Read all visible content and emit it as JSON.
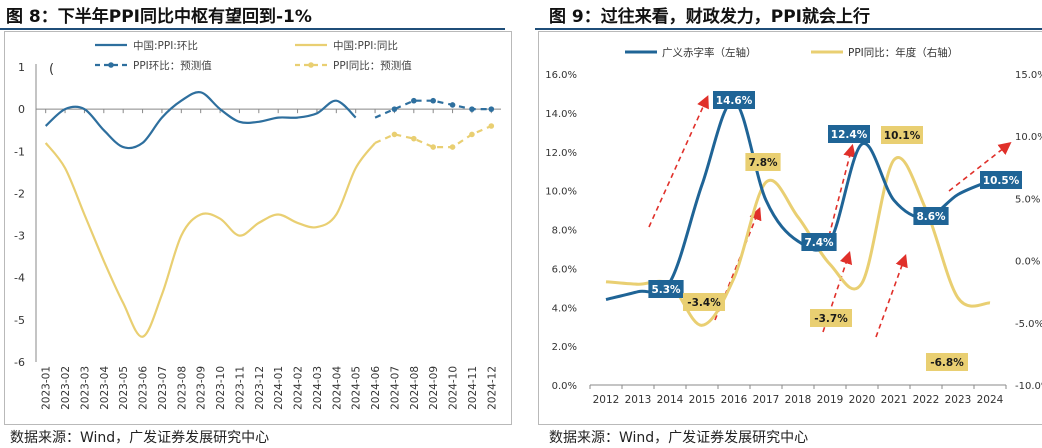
{
  "chart_data": [
    {
      "type": "line",
      "title": "图 8：下半年PPI同比中枢有望回到-1%",
      "source": "数据来源：Wind，广发证券发展研究中心",
      "ylim": [
        -6,
        1
      ],
      "yticks": [
        "1",
        "0",
        "-1",
        "-2",
        "-3",
        "-4",
        "-5",
        "-6"
      ],
      "categories": [
        "2023-01",
        "2023-02",
        "2023-03",
        "2023-04",
        "2023-05",
        "2023-06",
        "2023-07",
        "2023-08",
        "2023-09",
        "2023-10",
        "2023-11",
        "2023-12",
        "2024-01",
        "2024-02",
        "2024-03",
        "2024-04",
        "2024-05",
        "2024-06",
        "2024-07",
        "2024-08",
        "2024-09",
        "2024-10",
        "2024-11",
        "2024-12"
      ],
      "legend_stray": "(",
      "series": [
        {
          "name": "中国:PPI:环比",
          "color": "#2e6f9e",
          "style": "solid",
          "values": [
            -0.4,
            0.0,
            0.0,
            -0.5,
            -0.9,
            -0.8,
            -0.2,
            0.2,
            0.4,
            0.0,
            -0.3,
            -0.3,
            -0.2,
            -0.2,
            -0.1,
            0.2,
            -0.2,
            null,
            null,
            null,
            null,
            null,
            null,
            null
          ]
        },
        {
          "name": "中国:PPI:同比",
          "color": "#e9cf72",
          "style": "solid",
          "values": [
            -0.8,
            -1.4,
            -2.5,
            -3.6,
            -4.6,
            -5.4,
            -4.4,
            -3.0,
            -2.5,
            -2.6,
            -3.0,
            -2.7,
            -2.5,
            -2.7,
            -2.8,
            -2.5,
            -1.4,
            -0.8,
            null,
            null,
            null,
            null,
            null,
            null
          ]
        },
        {
          "name": "PPI环比：预测值",
          "color": "#2e6f9e",
          "style": "dashed",
          "values": [
            null,
            null,
            null,
            null,
            null,
            null,
            null,
            null,
            null,
            null,
            null,
            null,
            null,
            null,
            null,
            null,
            null,
            -0.2,
            0.0,
            0.2,
            0.2,
            0.1,
            0.0,
            0.0
          ]
        },
        {
          "name": "PPI同比：预测值",
          "color": "#e9cf72",
          "style": "dashed",
          "values": [
            null,
            null,
            null,
            null,
            null,
            null,
            null,
            null,
            null,
            null,
            null,
            null,
            null,
            null,
            null,
            null,
            null,
            -0.8,
            -0.6,
            -0.7,
            -0.9,
            -0.9,
            -0.6,
            -0.4
          ]
        }
      ]
    },
    {
      "type": "line",
      "title": "图 9：过往来看，财政发力，PPI就会上行",
      "source": "数据来源：Wind，广发证券发展研究中心",
      "x": [
        "2012",
        "2013",
        "2014",
        "2015",
        "2016",
        "2017",
        "2018",
        "2019",
        "2020",
        "2021",
        "2022",
        "2023",
        "2024"
      ],
      "ylim_left": [
        0,
        16
      ],
      "ylim_right": [
        -10,
        15
      ],
      "yticks_left": [
        "16.0%",
        "14.0%",
        "12.0%",
        "10.0%",
        "8.0%",
        "6.0%",
        "4.0%",
        "2.0%",
        "0.0%"
      ],
      "yticks_right": [
        "15.0%",
        "10.0%",
        "5.0%",
        "0.0%",
        "-5.0%",
        "-10.0%"
      ],
      "series": [
        {
          "name": "广义赤字率（左轴）",
          "axis": "left",
          "color": "#1f6496",
          "values": [
            4.4,
            4.8,
            5.3,
            10.3,
            14.6,
            9.5,
            7.4,
            7.4,
            12.4,
            9.5,
            8.6,
            9.8,
            10.5
          ]
        },
        {
          "name": "PPI同比：年度（右轴）",
          "axis": "right",
          "color": "#e9cf72",
          "values": [
            -1.7,
            -1.9,
            -1.9,
            -5.2,
            -1.4,
            6.3,
            3.5,
            -0.3,
            -1.8,
            8.1,
            4.1,
            -3.0,
            -3.4
          ]
        }
      ],
      "labels": [
        {
          "text": "14.6%",
          "series": "left"
        },
        {
          "text": "5.3%",
          "series": "left"
        },
        {
          "text": "7.4%",
          "series": "left"
        },
        {
          "text": "12.4%",
          "series": "left"
        },
        {
          "text": "8.6%",
          "series": "left"
        },
        {
          "text": "10.5%",
          "series": "left"
        },
        {
          "text": "7.8%",
          "series": "right"
        },
        {
          "text": "-3.4%",
          "series": "right"
        },
        {
          "text": "-3.7%",
          "series": "right"
        },
        {
          "text": "10.1%",
          "series": "right"
        },
        {
          "text": "-6.8%",
          "series": "right"
        }
      ]
    }
  ]
}
